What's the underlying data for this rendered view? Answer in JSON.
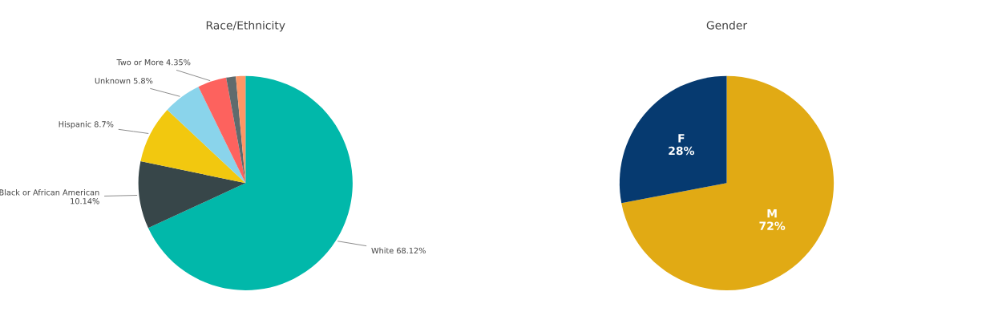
{
  "chart_data": [
    {
      "type": "pie",
      "title": "Race/Ethnicity",
      "categories": [
        "White",
        "Black or African American",
        "Hispanic",
        "Unknown",
        "Two or More",
        null,
        null
      ],
      "values": [
        68.12,
        10.14,
        8.7,
        5.8,
        4.35,
        1.45,
        1.44
      ],
      "value_labels": [
        "68.12%",
        "10.14%",
        "8.7%",
        "5.8%",
        "4.35%",
        null,
        null
      ],
      "colors": [
        "#01b8aa",
        "#374649",
        "#f2c80f",
        "#8ad4eb",
        "#fd625e",
        "#5f6b6d",
        "#fe9666"
      ]
    },
    {
      "type": "pie",
      "title": "Gender",
      "categories": [
        "M",
        "F"
      ],
      "values": [
        72,
        28
      ],
      "value_labels": [
        "72%",
        "28%"
      ],
      "colors": [
        "#e1aa14",
        "#063a70"
      ]
    }
  ]
}
